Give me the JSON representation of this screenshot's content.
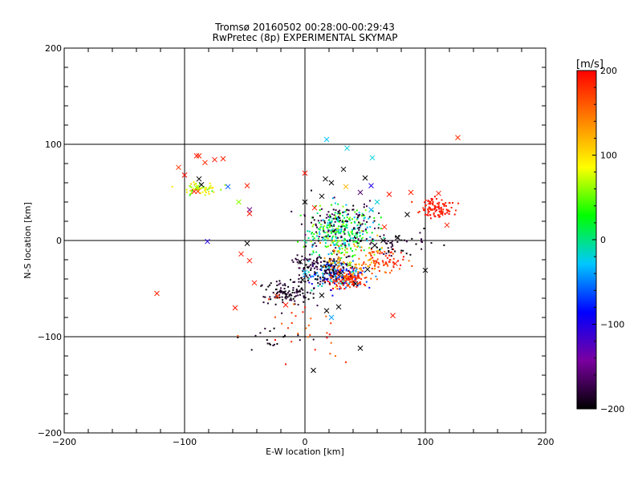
{
  "chart_data": {
    "type": "scatter",
    "title": "Tromsø 20160502 00:28:00-00:29:43",
    "subtitle": "RwPretec (8p) EXPERIMENTAL SKYMAP",
    "xlabel": "E-W location [km]",
    "ylabel": "N-S location [km]",
    "xlim": [
      -200,
      200
    ],
    "ylim": [
      -200,
      200
    ],
    "xticks": [
      -200,
      -100,
      0,
      100,
      200
    ],
    "yticks": [
      -200,
      -100,
      0,
      100,
      200
    ],
    "xtick_labels": [
      "−200",
      "−100",
      "0",
      "100",
      "200"
    ],
    "ytick_labels": [
      "−200",
      "−100",
      "0",
      "100",
      "200"
    ],
    "grid": true,
    "color_by": "velocity",
    "colorbar": {
      "unit_label": "[m/s]",
      "min": -200,
      "max": 200,
      "ticks": [
        -200,
        -100,
        0,
        100,
        200
      ],
      "tick_labels": [
        "−200",
        "−100",
        "0",
        "100",
        "200"
      ],
      "colors": [
        "#000000",
        "#7a00a0",
        "#0000ff",
        "#00c8ff",
        "#00ff00",
        "#ffff00",
        "#ff8000",
        "#ff0000"
      ]
    },
    "series": [
      {
        "marker": "x",
        "points": [
          [
            127,
            107
          ],
          [
            -90,
            88
          ],
          [
            -88,
            88
          ],
          [
            -83,
            81
          ],
          [
            -75,
            84
          ],
          [
            -68,
            85
          ],
          [
            -105,
            76
          ],
          [
            -100,
            68
          ],
          [
            -88,
            64
          ],
          [
            -86,
            58
          ],
          [
            -90,
            55
          ],
          [
            -92,
            51
          ],
          [
            -89,
            51
          ],
          [
            -64,
            56
          ],
          [
            -48,
            57
          ],
          [
            -55,
            40
          ],
          [
            -46,
            32
          ],
          [
            -46,
            28
          ],
          [
            -123,
            -55
          ],
          [
            -58,
            -70
          ],
          [
            -81,
            -1
          ],
          [
            -48,
            -3
          ],
          [
            -53,
            -14
          ],
          [
            -46,
            -21
          ],
          [
            -42,
            -44
          ],
          [
            -23,
            -58
          ],
          [
            -16,
            -67
          ],
          [
            -2,
            -41
          ],
          [
            0,
            70
          ],
          [
            18,
            105
          ],
          [
            35,
            96
          ],
          [
            56,
            86
          ],
          [
            17,
            64
          ],
          [
            32,
            74
          ],
          [
            50,
            65
          ],
          [
            55,
            57
          ],
          [
            60,
            40
          ],
          [
            70,
            48
          ],
          [
            88,
            50
          ],
          [
            104,
            40
          ],
          [
            111,
            49
          ],
          [
            113,
            28
          ],
          [
            118,
            16
          ],
          [
            100,
            -31
          ],
          [
            75,
            -24
          ],
          [
            73,
            -78
          ],
          [
            46,
            -112
          ],
          [
            7,
            -135
          ],
          [
            18,
            -73
          ],
          [
            28,
            -69
          ],
          [
            22,
            -80
          ],
          [
            14,
            -57
          ],
          [
            30,
            -34
          ],
          [
            37,
            -25
          ],
          [
            42,
            -45
          ],
          [
            52,
            -30
          ],
          [
            58,
            -5
          ],
          [
            65,
            0
          ],
          [
            66,
            14
          ],
          [
            77,
            3
          ],
          [
            85,
            27
          ],
          [
            14,
            46
          ],
          [
            8,
            34
          ],
          [
            0,
            40
          ],
          [
            22,
            60
          ],
          [
            34,
            56
          ],
          [
            46,
            50
          ],
          [
            55,
            32
          ],
          [
            -4,
            -22
          ],
          [
            0,
            -33
          ]
        ],
        "velocities": [
          180,
          190,
          185,
          180,
          190,
          185,
          175,
          195,
          -200,
          -200,
          60,
          190,
          180,
          -60,
          185,
          60,
          -150,
          190,
          185,
          190,
          -100,
          -200,
          190,
          190,
          190,
          180,
          190,
          -200,
          190,
          -30,
          -20,
          -20,
          -200,
          -200,
          -200,
          -100,
          -20,
          190,
          185,
          190,
          190,
          185,
          185,
          -200,
          190,
          190,
          -200,
          -200,
          -200,
          -200,
          -40,
          -200,
          -200,
          60,
          -200,
          -200,
          -200,
          -200,
          185,
          -200,
          -200,
          -200,
          190,
          -200,
          -200,
          120,
          -160,
          -40,
          -200,
          -30
        ]
      },
      {
        "marker": "dot",
        "clusters": [
          {
            "center": [
              30,
              10
            ],
            "spread": [
              13,
              13
            ],
            "count": 320,
            "velocities": [
              -40,
              70
            ]
          },
          {
            "center": [
              25,
              -35
            ],
            "spread": [
              12,
              7
            ],
            "count": 180,
            "velocities": [
              -120,
              0
            ]
          },
          {
            "center": [
              35,
              -40
            ],
            "spread": [
              7,
              5
            ],
            "count": 120,
            "velocities": [
              160,
              200
            ]
          },
          {
            "center": [
              15,
              -28
            ],
            "spread": [
              12,
              8
            ],
            "count": 140,
            "velocities": [
              -200,
              -170
            ]
          },
          {
            "center": [
              -13,
              -55
            ],
            "spread": [
              11,
              6
            ],
            "count": 110,
            "velocities": [
              -200,
              -175
            ]
          },
          {
            "center": [
              110,
              33
            ],
            "spread": [
              7,
              5
            ],
            "count": 100,
            "velocities": [
              180,
              200
            ]
          },
          {
            "center": [
              -88,
              54
            ],
            "spread": [
              8,
              3
            ],
            "count": 60,
            "velocities": [
              40,
              110
            ]
          },
          {
            "center": [
              65,
              -20
            ],
            "spread": [
              10,
              6
            ],
            "count": 70,
            "velocities": [
              150,
              200
            ]
          },
          {
            "center": [
              75,
              -3
            ],
            "spread": [
              15,
              6
            ],
            "count": 50,
            "velocities": [
              -200,
              -170
            ]
          },
          {
            "center": [
              30,
              18
            ],
            "spread": [
              15,
              15
            ],
            "count": 120,
            "velocities": [
              -200,
              -160
            ]
          },
          {
            "center": [
              40,
              -20
            ],
            "spread": [
              15,
              12
            ],
            "count": 80,
            "velocities": [
              100,
              160
            ]
          },
          {
            "center": [
              0,
              -95
            ],
            "spread": [
              20,
              20
            ],
            "count": 30,
            "velocities": [
              150,
              200
            ]
          },
          {
            "center": [
              -20,
              -100
            ],
            "spread": [
              15,
              10
            ],
            "count": 20,
            "velocities": [
              -200,
              -180
            ]
          }
        ]
      }
    ]
  }
}
